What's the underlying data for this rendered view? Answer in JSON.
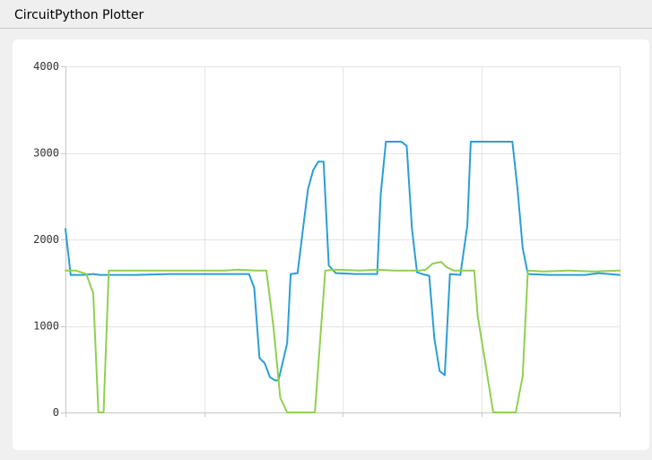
{
  "window": {
    "title": "CircuitPython Plotter"
  },
  "chart_data": {
    "type": "line",
    "xlabel": "",
    "ylabel": "",
    "ylim": [
      0,
      4000
    ],
    "xlim": [
      0,
      160
    ],
    "y_ticks": [
      {
        "value": 0,
        "label": "0"
      },
      {
        "value": 1000,
        "label": "1000"
      },
      {
        "value": 2000,
        "label": "2000"
      },
      {
        "value": 3000,
        "label": "3000"
      },
      {
        "value": 4000,
        "label": "4000"
      }
    ],
    "x_gridlines": [
      0,
      40,
      80,
      120,
      160
    ],
    "grid": true,
    "legend": "none",
    "series": [
      {
        "color": "#2a9fd6",
        "points": [
          [
            0,
            2120
          ],
          [
            1.5,
            1590
          ],
          [
            5,
            1590
          ],
          [
            8,
            1600
          ],
          [
            10,
            1590
          ],
          [
            14,
            1590
          ],
          [
            20,
            1590
          ],
          [
            30,
            1600
          ],
          [
            40,
            1600
          ],
          [
            50,
            1600
          ],
          [
            53,
            1600
          ],
          [
            54.5,
            1440
          ],
          [
            56,
            630
          ],
          [
            57.5,
            570
          ],
          [
            59,
            410
          ],
          [
            60.5,
            370
          ],
          [
            61.5,
            370
          ],
          [
            64,
            800
          ],
          [
            65,
            1600
          ],
          [
            67,
            1610
          ],
          [
            68.5,
            2100
          ],
          [
            70,
            2580
          ],
          [
            71.5,
            2800
          ],
          [
            73,
            2900
          ],
          [
            74.5,
            2900
          ],
          [
            76,
            1700
          ],
          [
            78,
            1610
          ],
          [
            84,
            1600
          ],
          [
            90,
            1600
          ],
          [
            91,
            2520
          ],
          [
            92.5,
            3130
          ],
          [
            97,
            3130
          ],
          [
            98.5,
            3080
          ],
          [
            100,
            2130
          ],
          [
            101.5,
            1620
          ],
          [
            103,
            1600
          ],
          [
            105,
            1580
          ],
          [
            106.5,
            850
          ],
          [
            108,
            480
          ],
          [
            109.5,
            430
          ],
          [
            111,
            1600
          ],
          [
            114,
            1590
          ],
          [
            116,
            2160
          ],
          [
            117,
            3130
          ],
          [
            129,
            3130
          ],
          [
            130.5,
            2580
          ],
          [
            132,
            1900
          ],
          [
            133.5,
            1600
          ],
          [
            140,
            1590
          ],
          [
            150,
            1590
          ],
          [
            154,
            1610
          ],
          [
            160,
            1590
          ]
        ]
      },
      {
        "color": "#8fd14f",
        "points": [
          [
            0,
            1640
          ],
          [
            3,
            1640
          ],
          [
            6,
            1600
          ],
          [
            8,
            1380
          ],
          [
            9.5,
            0
          ],
          [
            11,
            0
          ],
          [
            12.5,
            1640
          ],
          [
            20,
            1640
          ],
          [
            30,
            1640
          ],
          [
            40,
            1640
          ],
          [
            46,
            1640
          ],
          [
            50,
            1650
          ],
          [
            55,
            1640
          ],
          [
            58,
            1640
          ],
          [
            60,
            1000
          ],
          [
            62,
            170
          ],
          [
            64,
            0
          ],
          [
            72,
            0
          ],
          [
            75,
            1640
          ],
          [
            78,
            1650
          ],
          [
            85,
            1640
          ],
          [
            90,
            1650
          ],
          [
            95,
            1640
          ],
          [
            102,
            1640
          ],
          [
            104,
            1650
          ],
          [
            106,
            1720
          ],
          [
            108.5,
            1740
          ],
          [
            110,
            1680
          ],
          [
            112,
            1640
          ],
          [
            118,
            1640
          ],
          [
            119,
            1120
          ],
          [
            123.5,
            0
          ],
          [
            130,
            0
          ],
          [
            132,
            420
          ],
          [
            133.5,
            1640
          ],
          [
            138,
            1630
          ],
          [
            145,
            1640
          ],
          [
            152,
            1630
          ],
          [
            160,
            1640
          ]
        ]
      }
    ]
  }
}
